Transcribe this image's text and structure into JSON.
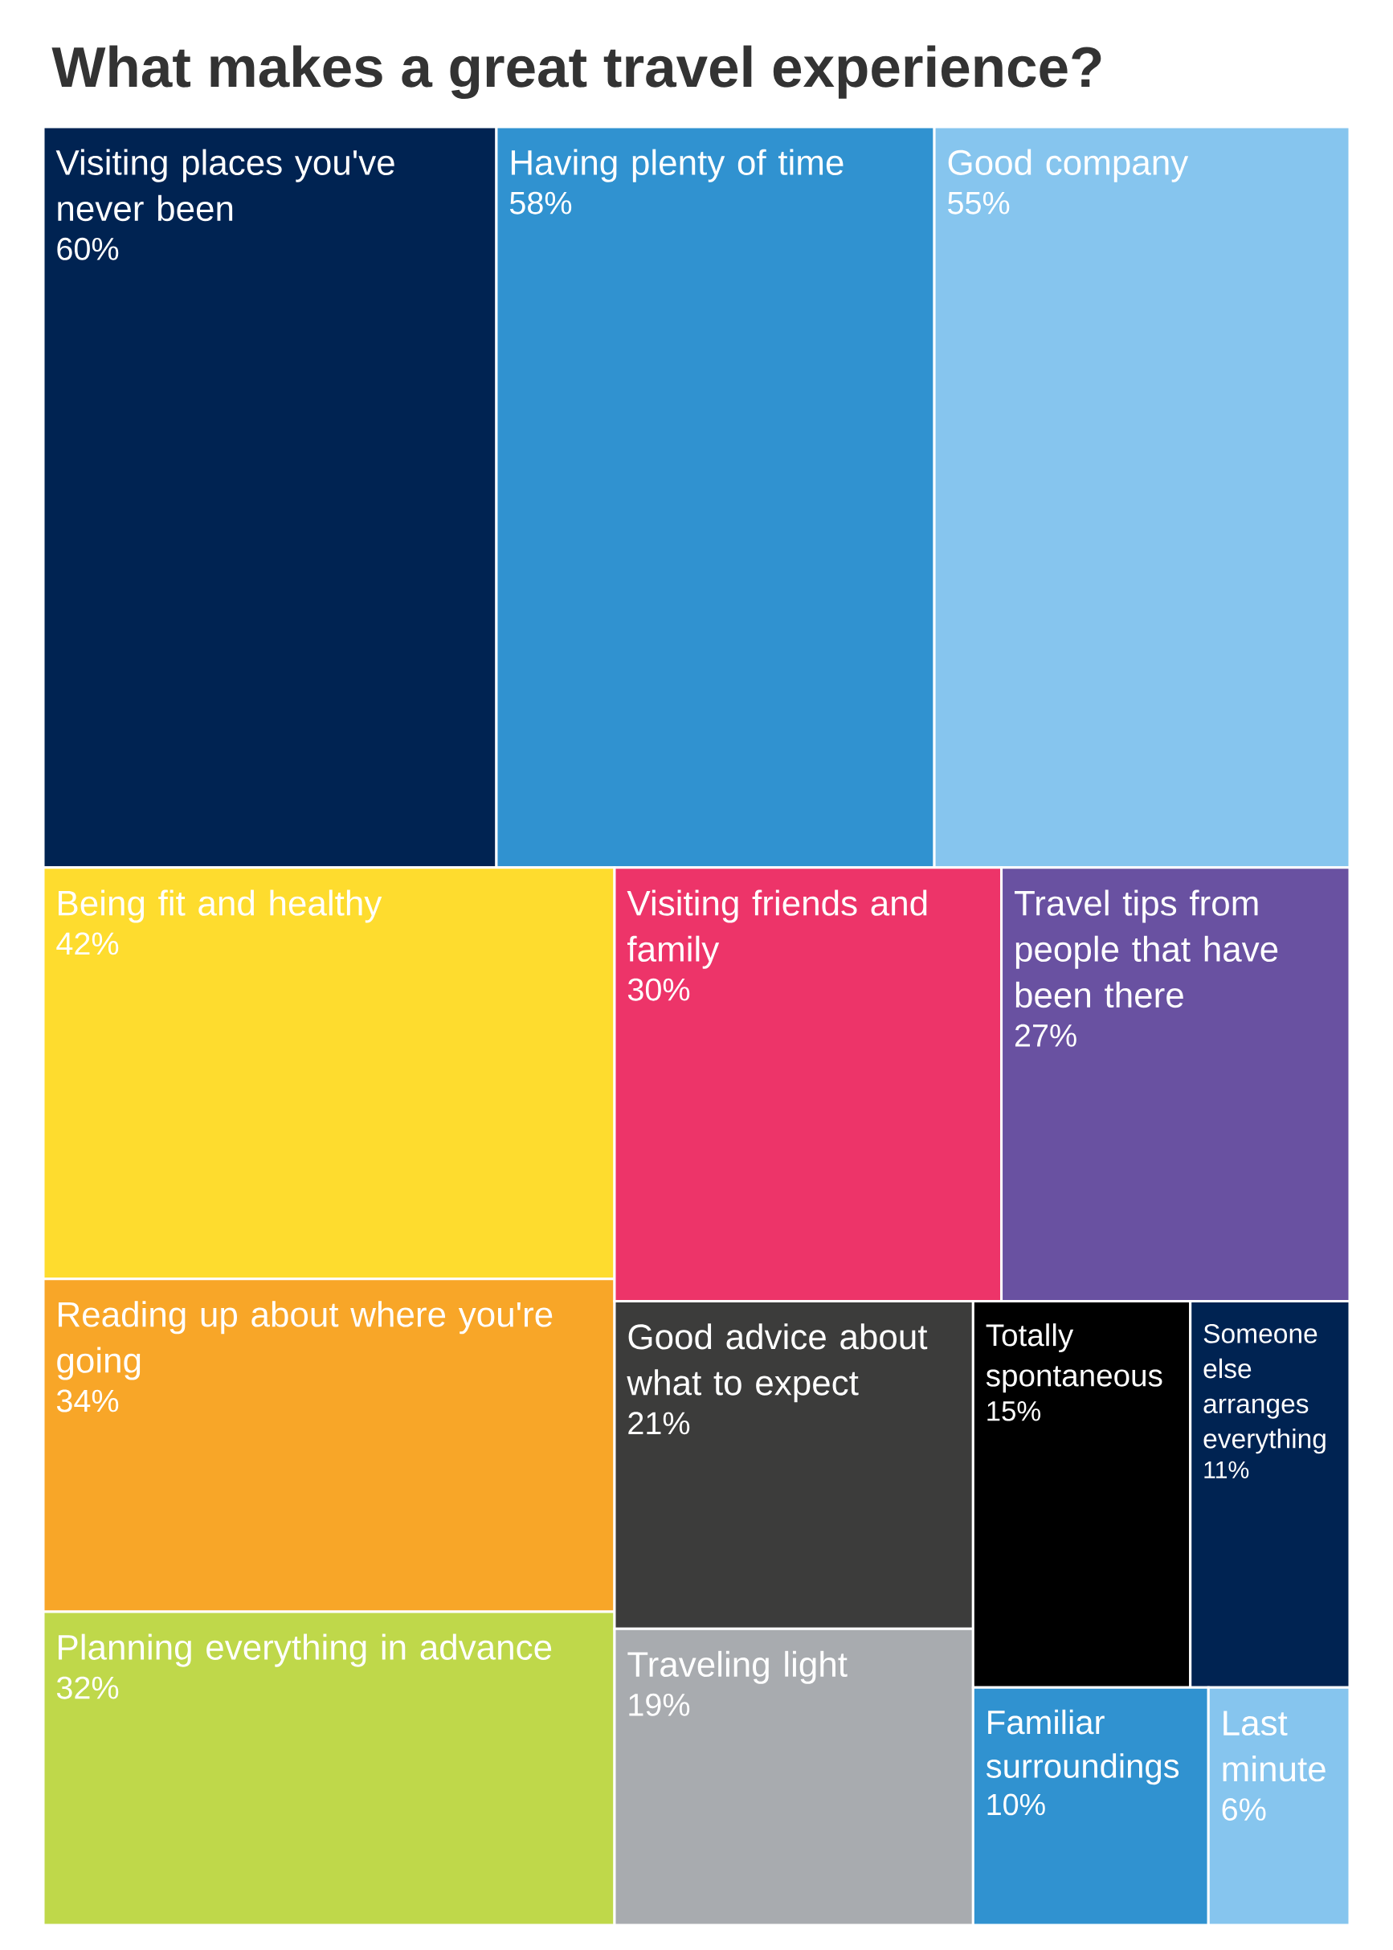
{
  "chart_data": {
    "type": "other",
    "title": "What makes a great travel experience?",
    "categories": [
      "Visiting places you've never been",
      "Having plenty of time",
      "Good company",
      "Being fit and healthy",
      "Reading up about where you're going",
      "Planning everything in advance",
      "Visiting friends and family",
      "Travel tips from people that have been there",
      "Good advice about what to expect",
      "Traveling light",
      "Totally spontaneous",
      "Someone else arranges everything",
      "Familiar surroundings",
      "Last minute"
    ],
    "values": [
      60,
      58,
      55,
      42,
      34,
      32,
      30,
      27,
      21,
      19,
      15,
      11,
      10,
      6
    ],
    "value_labels": [
      "60%",
      "58%",
      "55%",
      "42%",
      "34%",
      "32%",
      "30%",
      "27%",
      "21%",
      "19%",
      "15%",
      "11%",
      "10%",
      "6%"
    ],
    "colors": [
      "#002352",
      "#3092d0",
      "#86c5ee",
      "#fedc2e",
      "#f8a628",
      "#bfd84a",
      "#ed3469",
      "#6951a1",
      "#3c3c3b",
      "#a8abaf",
      "#000000",
      "#002352",
      "#3092d0",
      "#86c5ee"
    ]
  }
}
